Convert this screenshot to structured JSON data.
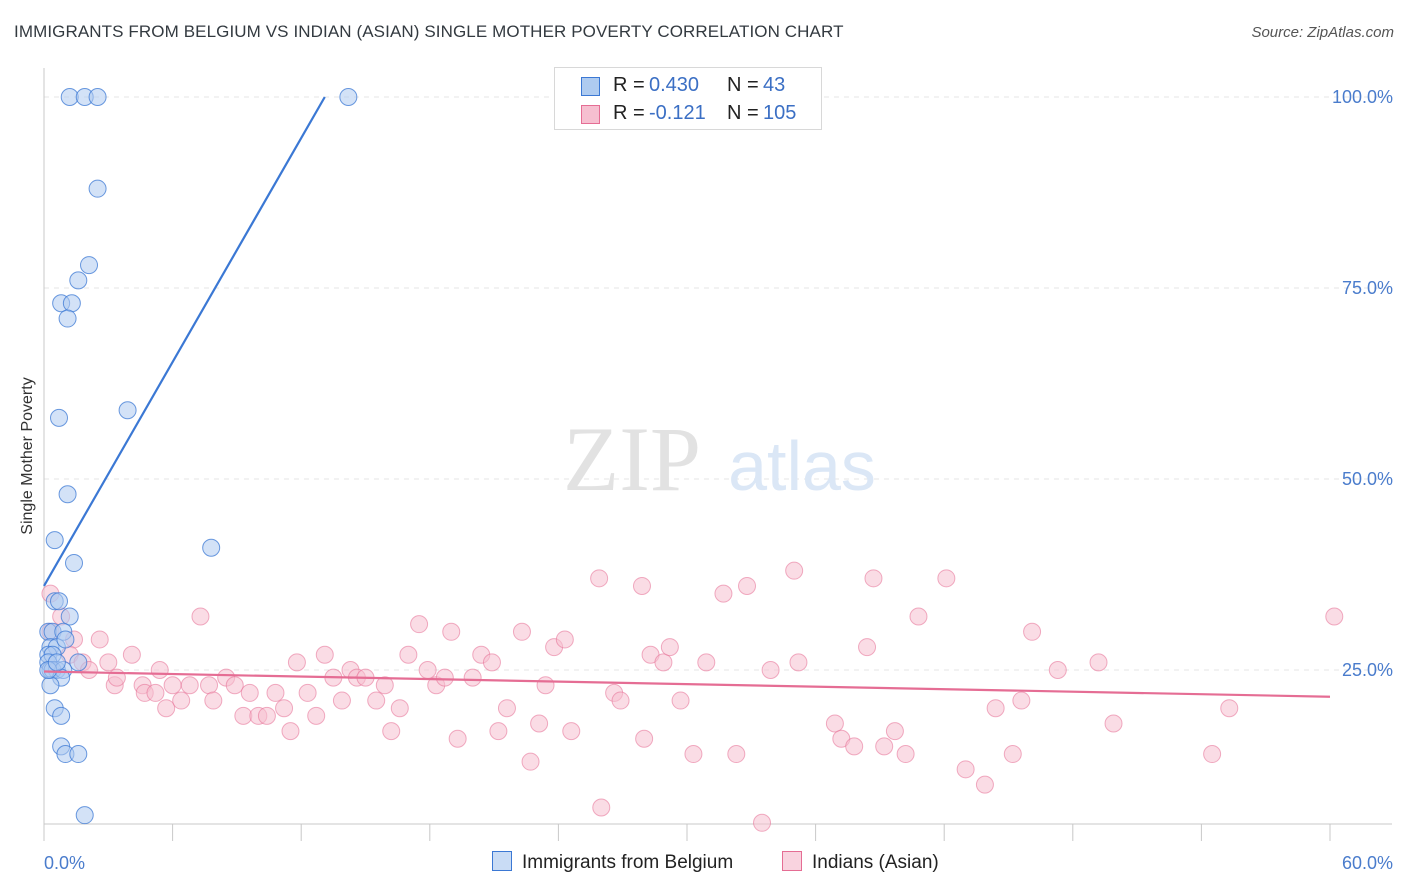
{
  "title": "IMMIGRANTS FROM BELGIUM VS INDIAN (ASIAN) SINGLE MOTHER POVERTY CORRELATION CHART",
  "source": "Source: ZipAtlas.com",
  "watermark": {
    "zip": "ZIP",
    "atlas": "atlas"
  },
  "legend_top": {
    "rows": [
      {
        "r_label": "R =",
        "r_value": "0.430",
        "n_label": "N =",
        "n_value": "43"
      },
      {
        "r_label": "R =",
        "r_value": "-0.121",
        "n_label": "N =",
        "n_value": "105"
      }
    ]
  },
  "legend_bottom": {
    "series1": "Immigrants from Belgium",
    "series2": "Indians (Asian)"
  },
  "chart_data": {
    "type": "scatter",
    "title": "IMMIGRANTS FROM BELGIUM VS INDIAN (ASIAN) SINGLE MOTHER POVERTY CORRELATION CHART",
    "xlabel": "",
    "ylabel": "Single Mother Poverty",
    "xlim": [
      0,
      60
    ],
    "ylim": [
      0,
      102
    ],
    "x_tick_labels": [
      "0.0%",
      "60.0%"
    ],
    "y_ticks": [
      25,
      50,
      75,
      100
    ],
    "y_tick_labels": [
      "25.0%",
      "50.0%",
      "75.0%",
      "100.0%"
    ],
    "grid": true,
    "legend_position": "top-center",
    "colors": {
      "series1": "#3b78d4",
      "series1_fill": "#aecbf0",
      "series2": "#e56d94",
      "series2_fill": "#f6bfd0",
      "tick_text": "#4a7ccc"
    },
    "series": [
      {
        "name": "Immigrants from Belgium",
        "R": 0.43,
        "N": 43,
        "trend": [
          [
            0.0,
            36.0
          ],
          [
            13.1,
            100.0
          ]
        ],
        "points": [
          [
            1.2,
            100
          ],
          [
            1.9,
            100
          ],
          [
            2.5,
            100
          ],
          [
            14.2,
            100
          ],
          [
            2.5,
            88
          ],
          [
            2.1,
            78
          ],
          [
            1.6,
            76
          ],
          [
            0.8,
            73
          ],
          [
            1.3,
            73
          ],
          [
            1.1,
            71
          ],
          [
            0.7,
            58
          ],
          [
            3.9,
            59
          ],
          [
            1.1,
            48
          ],
          [
            0.5,
            42
          ],
          [
            1.4,
            39
          ],
          [
            7.8,
            41
          ],
          [
            0.5,
            34
          ],
          [
            0.7,
            34
          ],
          [
            1.2,
            32
          ],
          [
            0.2,
            30
          ],
          [
            0.4,
            30
          ],
          [
            0.9,
            30
          ],
          [
            0.3,
            28
          ],
          [
            0.6,
            28
          ],
          [
            1.0,
            29
          ],
          [
            0.2,
            27
          ],
          [
            0.4,
            27
          ],
          [
            0.2,
            26
          ],
          [
            1.6,
            26
          ],
          [
            0.3,
            25
          ],
          [
            0.6,
            25
          ],
          [
            0.4,
            25
          ],
          [
            0.9,
            25
          ],
          [
            0.8,
            24
          ],
          [
            0.3,
            23
          ],
          [
            0.5,
            20
          ],
          [
            0.8,
            19
          ],
          [
            0.8,
            15
          ],
          [
            1.0,
            14
          ],
          [
            1.6,
            14
          ],
          [
            1.9,
            6
          ],
          [
            0.2,
            25
          ],
          [
            0.6,
            26
          ]
        ]
      },
      {
        "name": "Indians (Asian)",
        "R": -0.121,
        "N": 105,
        "trend": [
          [
            0.0,
            24.8
          ],
          [
            60.0,
            21.5
          ]
        ],
        "points": [
          [
            0.3,
            35
          ],
          [
            0.8,
            32
          ],
          [
            0.3,
            30
          ],
          [
            1.4,
            29
          ],
          [
            1.2,
            27
          ],
          [
            1.8,
            26
          ],
          [
            2.1,
            25
          ],
          [
            2.6,
            29
          ],
          [
            3.0,
            26
          ],
          [
            3.3,
            23
          ],
          [
            4.1,
            27
          ],
          [
            4.6,
            23
          ],
          [
            4.7,
            22
          ],
          [
            5.2,
            22
          ],
          [
            5.4,
            25
          ],
          [
            5.7,
            20
          ],
          [
            6.0,
            23
          ],
          [
            6.4,
            21
          ],
          [
            6.8,
            23
          ],
          [
            7.3,
            32
          ],
          [
            7.7,
            23
          ],
          [
            7.9,
            21
          ],
          [
            8.5,
            24
          ],
          [
            8.9,
            23
          ],
          [
            9.3,
            19
          ],
          [
            9.6,
            22
          ],
          [
            10.0,
            19
          ],
          [
            10.4,
            19
          ],
          [
            10.8,
            22
          ],
          [
            11.2,
            20
          ],
          [
            11.5,
            17
          ],
          [
            11.8,
            26
          ],
          [
            12.3,
            22
          ],
          [
            12.7,
            19
          ],
          [
            13.1,
            27
          ],
          [
            13.5,
            24
          ],
          [
            13.9,
            21
          ],
          [
            14.3,
            25
          ],
          [
            14.6,
            24
          ],
          [
            15.0,
            24
          ],
          [
            15.5,
            21
          ],
          [
            15.9,
            23
          ],
          [
            16.2,
            17
          ],
          [
            16.6,
            20
          ],
          [
            17.0,
            27
          ],
          [
            17.5,
            31
          ],
          [
            17.9,
            25
          ],
          [
            18.3,
            23
          ],
          [
            18.7,
            24
          ],
          [
            19.0,
            30
          ],
          [
            19.3,
            16
          ],
          [
            20.0,
            24
          ],
          [
            20.4,
            27
          ],
          [
            20.9,
            26
          ],
          [
            21.2,
            17
          ],
          [
            21.6,
            20
          ],
          [
            22.3,
            30
          ],
          [
            22.7,
            13
          ],
          [
            23.1,
            18
          ],
          [
            23.4,
            23
          ],
          [
            23.8,
            28
          ],
          [
            24.3,
            29
          ],
          [
            24.6,
            17
          ],
          [
            25.9,
            37
          ],
          [
            26.0,
            7
          ],
          [
            26.6,
            22
          ],
          [
            26.9,
            21
          ],
          [
            27.9,
            36
          ],
          [
            28.0,
            16
          ],
          [
            28.3,
            27
          ],
          [
            28.9,
            26
          ],
          [
            29.2,
            28
          ],
          [
            29.7,
            21
          ],
          [
            30.3,
            14
          ],
          [
            30.9,
            26
          ],
          [
            31.7,
            35
          ],
          [
            32.3,
            14
          ],
          [
            32.8,
            36
          ],
          [
            33.5,
            5
          ],
          [
            33.9,
            25
          ],
          [
            35.0,
            38
          ],
          [
            35.2,
            26
          ],
          [
            36.9,
            18
          ],
          [
            37.2,
            16
          ],
          [
            37.8,
            15
          ],
          [
            38.4,
            28
          ],
          [
            38.7,
            37
          ],
          [
            39.2,
            15
          ],
          [
            39.7,
            17
          ],
          [
            40.2,
            14
          ],
          [
            40.8,
            32
          ],
          [
            42.1,
            37
          ],
          [
            43.0,
            12
          ],
          [
            43.9,
            10
          ],
          [
            44.4,
            20
          ],
          [
            45.2,
            14
          ],
          [
            45.6,
            21
          ],
          [
            46.1,
            30
          ],
          [
            47.3,
            25
          ],
          [
            49.2,
            26
          ],
          [
            49.9,
            18
          ],
          [
            54.5,
            14
          ],
          [
            55.3,
            20
          ],
          [
            60.2,
            32
          ],
          [
            3.4,
            24
          ]
        ]
      }
    ]
  }
}
